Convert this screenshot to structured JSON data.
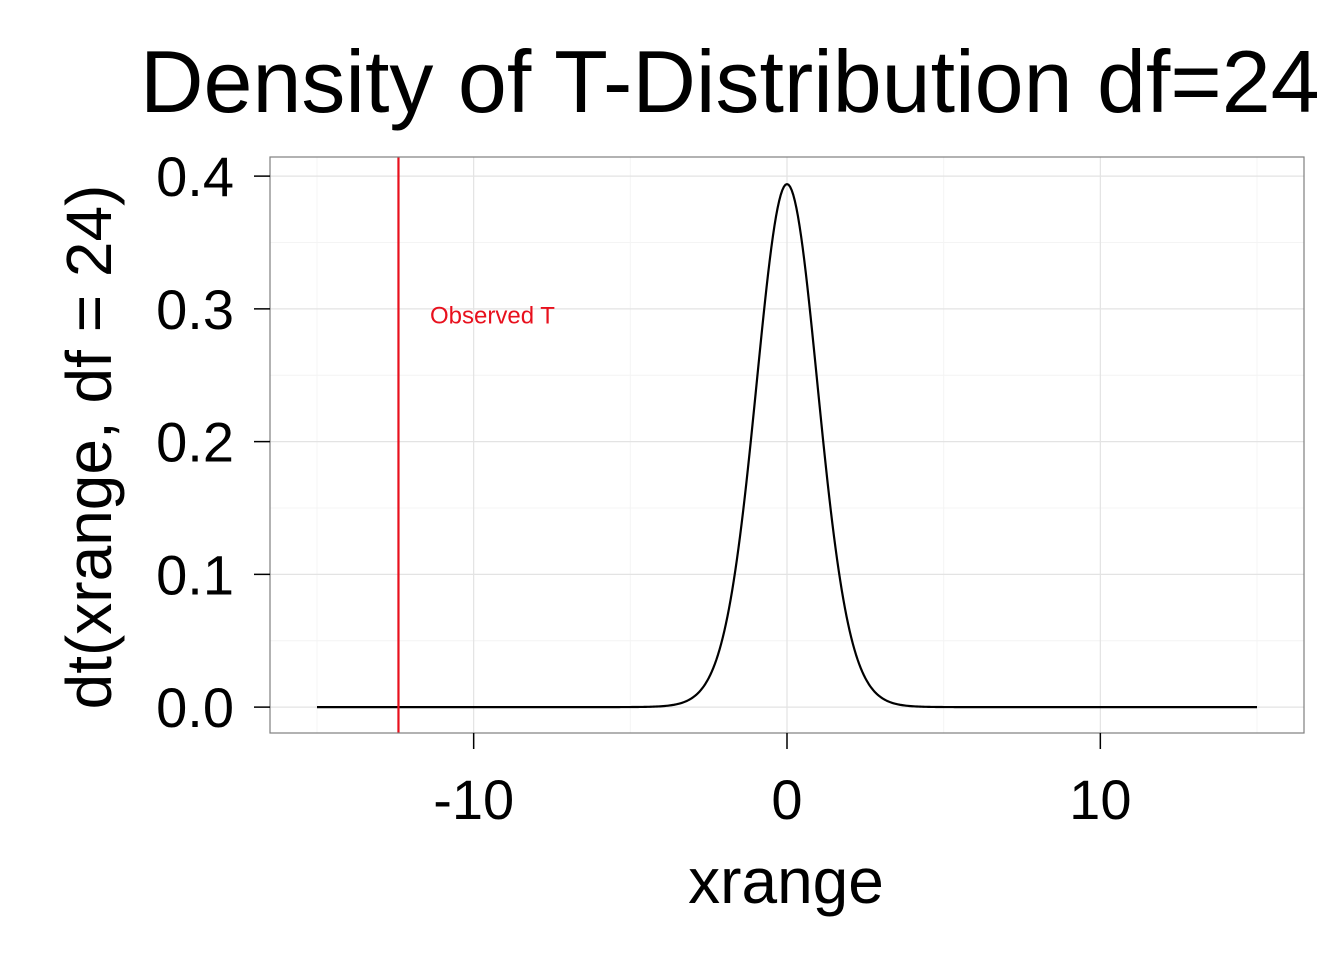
{
  "chart_data": {
    "type": "line",
    "title": "Density of T-Distribution df=24",
    "xlabel": "xrange",
    "ylabel": "dt(xrange, df = 24)",
    "x_domain": [
      -15,
      15
    ],
    "xlim": [
      -16.5,
      16.5
    ],
    "ylim": [
      -0.0195,
      0.4144
    ],
    "x_ticks": [
      -10,
      0,
      10
    ],
    "x_tick_labels": [
      "-10",
      "0",
      "10"
    ],
    "y_ticks": [
      0.0,
      0.1,
      0.2,
      0.3,
      0.4
    ],
    "y_tick_labels": [
      "0.0",
      "0.1",
      "0.2",
      "0.3",
      "0.4"
    ],
    "grid": true,
    "series": [
      {
        "distribution": "t",
        "df": 24,
        "peak_value": 0.394,
        "color": "#000000"
      }
    ],
    "vline": {
      "x": -12.4,
      "color": "#e8101d"
    },
    "annotation": {
      "text": "Observed T",
      "x": -9.4,
      "y": 0.295,
      "color": "#e8101d"
    },
    "colors": {
      "background": "#ffffff",
      "panel_border": "#7f7f7f",
      "grid_major": "#e3e3e3",
      "grid_minor": "#f4f4f4",
      "curve": "#000000",
      "observed": "#e8101d",
      "text": "#000000"
    }
  }
}
